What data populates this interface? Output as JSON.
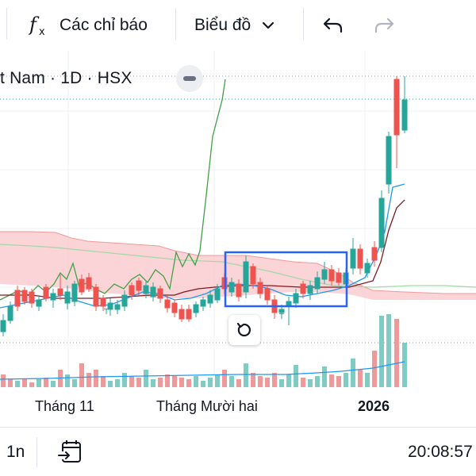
{
  "toolbar": {
    "indicators_label": "Các chỉ báo",
    "chart_type_label": "Biểu đồ"
  },
  "symbol": {
    "text": "t Nam · 1D · HSX"
  },
  "xaxis": {
    "labels": [
      "Tháng 11",
      "Tháng Mười hai",
      "2026"
    ]
  },
  "bottom": {
    "range_label": "1n",
    "time": "20:08:57"
  },
  "colors": {
    "up": "#26a69a",
    "down": "#ef5350",
    "selection": "#2962ff",
    "cloud": "#f8c5c8",
    "lagging_line": "#43a047",
    "base_line": "#801922",
    "conversion_line": "#2196f3"
  },
  "icons": {
    "fx": "fx-icon",
    "chevron": "chevron-down-icon",
    "undo": "undo-icon",
    "redo": "redo-icon",
    "collapse": "collapse-icon",
    "reset": "reset-icon",
    "date_range": "calendar-arrow-icon"
  },
  "chart_data": {
    "type": "candlestick",
    "interval": "1D",
    "exchange": "HSX",
    "indicators": [
      "Ichimoku Cloud",
      "Volume"
    ],
    "last_candles_trend": "sharp rally at start of 2026",
    "selection_box": "consolidation range highlighted in blue (December)"
  }
}
